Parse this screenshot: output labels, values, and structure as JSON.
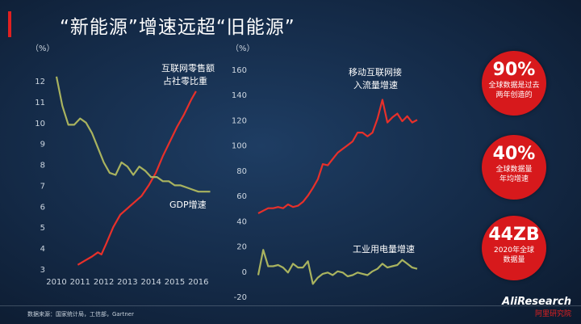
{
  "title": "“新能源”增速远超“旧能源”",
  "source": "数据来源：国家统计局，工信部，Gartner",
  "logo": {
    "line1": "AliResearch",
    "line2": "阿里研究院"
  },
  "stats": [
    {
      "value": "90%",
      "lines": [
        "全球数据是过去",
        "两年创造的"
      ]
    },
    {
      "value": "40%",
      "lines": [
        "全球数据量",
        "年均增速"
      ]
    },
    {
      "value": "44ZB",
      "lines": [
        "2020年全球",
        "数据量"
      ]
    }
  ],
  "colors": {
    "red": "#e8302a",
    "green": "#a9b35f",
    "circle": "#d7191c"
  },
  "chart_data": [
    {
      "type": "line",
      "ylabel": "（%）",
      "ylim": [
        3,
        12
      ],
      "yticks": [
        3,
        4,
        5,
        6,
        7,
        8,
        9,
        10,
        11,
        12
      ],
      "xlim": [
        2010,
        2016.7
      ],
      "xticks": [
        2010,
        2011,
        2012,
        2013,
        2014,
        2015,
        2016
      ],
      "series": [
        {
          "name": "互联网零售额占社零比重",
          "color": "#e8302a",
          "x": [
            2010.9,
            2011.2,
            2011.5,
            2011.75,
            2011.9,
            2012.1,
            2012.4,
            2012.7,
            2013.0,
            2013.3,
            2013.6,
            2013.9,
            2014.2,
            2014.5,
            2014.8,
            2015.1,
            2015.4,
            2015.7,
            2015.9
          ],
          "values": [
            3.2,
            3.4,
            3.6,
            3.8,
            3.7,
            4.2,
            5.0,
            5.6,
            5.9,
            6.2,
            6.5,
            7.0,
            7.6,
            8.4,
            9.1,
            9.8,
            10.4,
            11.1,
            11.5
          ]
        },
        {
          "name": "GDP增速",
          "color": "#a9b35f",
          "x": [
            2010.0,
            2010.25,
            2010.5,
            2010.75,
            2011.0,
            2011.25,
            2011.5,
            2011.75,
            2012.0,
            2012.25,
            2012.5,
            2012.75,
            2013.0,
            2013.25,
            2013.5,
            2013.75,
            2014.0,
            2014.25,
            2014.5,
            2014.75,
            2015.0,
            2015.25,
            2015.5,
            2015.75,
            2016.0,
            2016.25,
            2016.5
          ],
          "values": [
            12.2,
            10.8,
            9.9,
            9.9,
            10.2,
            10.0,
            9.5,
            8.8,
            8.1,
            7.6,
            7.5,
            8.1,
            7.9,
            7.5,
            7.9,
            7.7,
            7.4,
            7.4,
            7.2,
            7.2,
            7.0,
            7.0,
            6.9,
            6.8,
            6.7,
            6.7,
            6.7
          ]
        }
      ]
    },
    {
      "type": "line",
      "ylabel": "（%）",
      "ylim": [
        -20,
        160
      ],
      "yticks": [
        -20,
        0,
        20,
        40,
        60,
        80,
        100,
        120,
        140,
        160
      ],
      "series": [
        {
          "name": "移动互联网接入流量增速",
          "color": "#e8302a",
          "values": [
            46,
            48,
            50,
            50,
            51,
            50,
            53,
            51,
            52,
            55,
            60,
            66,
            73,
            85,
            84,
            89,
            94,
            97,
            100,
            103,
            110,
            110,
            107,
            110,
            121,
            136,
            118,
            122,
            125,
            119,
            123,
            118,
            120
          ]
        },
        {
          "name": "工业用电量增速",
          "color": "#a9b35f",
          "values": [
            -3,
            17,
            4,
            4,
            5,
            3,
            -1,
            6,
            3,
            3,
            8,
            -10,
            -5,
            -2,
            -1,
            -3,
            0,
            -1,
            -4,
            -3,
            -1,
            -2,
            -3,
            0,
            2,
            6,
            3,
            4,
            5,
            9,
            6,
            3,
            2
          ]
        }
      ]
    }
  ]
}
